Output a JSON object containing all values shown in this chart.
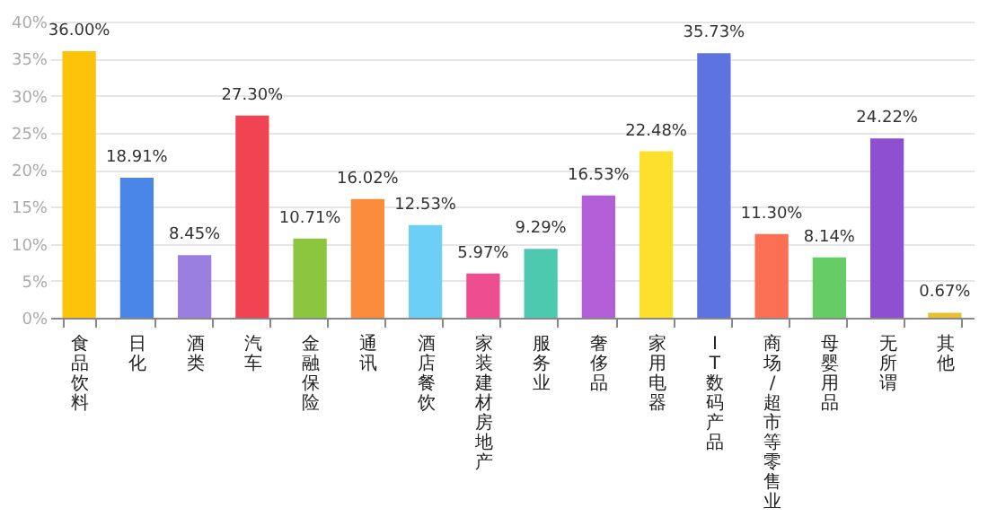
{
  "chart_data": {
    "type": "bar",
    "categories": [
      "食品饮料",
      "日化",
      "酒类",
      "汽车",
      "金融保险",
      "通讯",
      "酒店餐饮",
      "家装建材房地产",
      "服务业",
      "奢侈品",
      "家用电器",
      "IT数码产品",
      "商场/超市等零售业",
      "母婴用品",
      "无所谓",
      "其他"
    ],
    "values": [
      36.0,
      18.91,
      8.45,
      27.3,
      10.71,
      16.02,
      12.53,
      5.97,
      9.29,
      16.53,
      22.48,
      35.73,
      11.3,
      8.14,
      24.22,
      0.67
    ],
    "colors": [
      "#fdc20a",
      "#4a86e8",
      "#9b7fe0",
      "#f04452",
      "#8cc63f",
      "#fb8c3c",
      "#6ccff6",
      "#ee4d8f",
      "#4dc9b0",
      "#b360d8",
      "#fde02b",
      "#5c73e0",
      "#fb6f55",
      "#66cc66",
      "#8e4fd0",
      "#e8c12f"
    ],
    "value_labels": [
      "36.00%",
      "18.91%",
      "8.45%",
      "27.30%",
      "10.71%",
      "16.02%",
      "12.53%",
      "5.97%",
      "9.29%",
      "16.53%",
      "22.48%",
      "35.73%",
      "11.30%",
      "8.14%",
      "24.22%",
      "0.67%"
    ],
    "ylim": [
      0,
      40
    ],
    "yticks": [
      {
        "value": 0,
        "label": "0%"
      },
      {
        "value": 5,
        "label": "5%"
      },
      {
        "value": 10,
        "label": "10%"
      },
      {
        "value": 15,
        "label": "15%"
      },
      {
        "value": 20,
        "label": "20%"
      },
      {
        "value": 25,
        "label": "25%"
      },
      {
        "value": 30,
        "label": "30%"
      },
      {
        "value": 35,
        "label": "35%"
      },
      {
        "value": 40,
        "label": "40%"
      }
    ],
    "grid": "y"
  }
}
